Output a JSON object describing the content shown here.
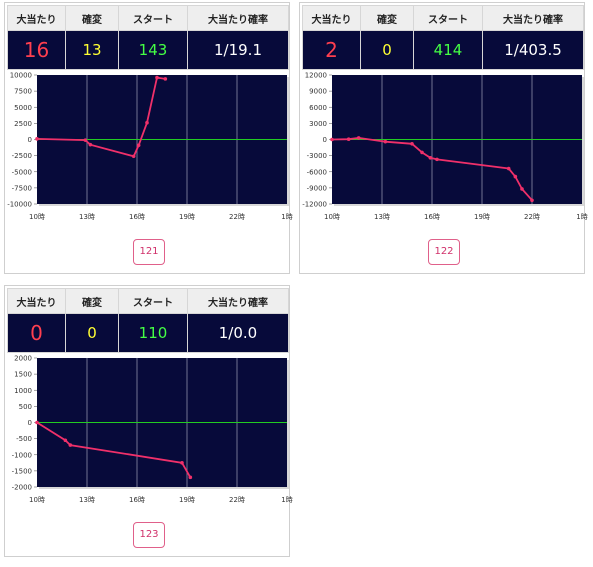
{
  "headers": {
    "big": "大当たり",
    "kakuhen": "確変",
    "start": "スタート",
    "prob": "大当たり確率"
  },
  "machines": [
    {
      "number": "121",
      "big": "16",
      "kakuhen": "13",
      "start": "143",
      "prob": "1/19.1",
      "chart_data": {
        "type": "line",
        "x_ticks": [
          "10時",
          "13時",
          "16時",
          "19時",
          "22時",
          "1時"
        ],
        "y_ticks": [
          "10000",
          "7500",
          "5000",
          "2500",
          "0",
          "-2500",
          "-5000",
          "-7500",
          "-10000"
        ],
        "ylim": [
          -10000,
          10000
        ],
        "xlim": [
          10,
          25
        ],
        "series": [
          {
            "values": [
              [
                10,
                100
              ],
              [
                12.9,
                -100
              ],
              [
                13.2,
                -800
              ],
              [
                15.8,
                -2600
              ],
              [
                16.1,
                -900
              ],
              [
                16.6,
                2600
              ],
              [
                17.2,
                9600
              ],
              [
                17.7,
                9400
              ]
            ]
          }
        ]
      }
    },
    {
      "number": "122",
      "big": "2",
      "kakuhen": "0",
      "start": "414",
      "prob": "1/403.5",
      "chart_data": {
        "type": "line",
        "x_ticks": [
          "10時",
          "13時",
          "16時",
          "19時",
          "22時",
          "1時"
        ],
        "y_ticks": [
          "12000",
          "9000",
          "6000",
          "3000",
          "0",
          "-3000",
          "-6000",
          "-9000",
          "-12000"
        ],
        "ylim": [
          -12000,
          12000
        ],
        "xlim": [
          10,
          25
        ],
        "series": [
          {
            "values": [
              [
                10,
                0
              ],
              [
                11,
                50
              ],
              [
                11.6,
                300
              ],
              [
                13.2,
                -400
              ],
              [
                14.8,
                -800
              ],
              [
                15.4,
                -2400
              ],
              [
                15.9,
                -3400
              ],
              [
                16.3,
                -3700
              ],
              [
                20.6,
                -5400
              ],
              [
                21,
                -6900
              ],
              [
                21.4,
                -9200
              ],
              [
                22,
                -11300
              ]
            ]
          }
        ]
      }
    },
    {
      "number": "123",
      "big": "0",
      "kakuhen": "0",
      "start": "110",
      "prob": "1/0.0",
      "chart_data": {
        "type": "line",
        "x_ticks": [
          "10時",
          "13時",
          "16時",
          "19時",
          "22時",
          "1時"
        ],
        "y_ticks": [
          "2000",
          "1500",
          "1000",
          "500",
          "0",
          "-500",
          "-1000",
          "-1500",
          "-2000"
        ],
        "ylim": [
          -2000,
          2000
        ],
        "xlim": [
          10,
          25
        ],
        "series": [
          {
            "values": [
              [
                10,
                0
              ],
              [
                11.7,
                -550
              ],
              [
                12,
                -700
              ],
              [
                18.7,
                -1250
              ],
              [
                19.2,
                -1700
              ]
            ]
          }
        ]
      }
    }
  ],
  "colors": {
    "plot_bg": "#070a3a",
    "grid": "#8c8fa8",
    "zero_line": "#22cc22",
    "series": "#f0306a"
  }
}
